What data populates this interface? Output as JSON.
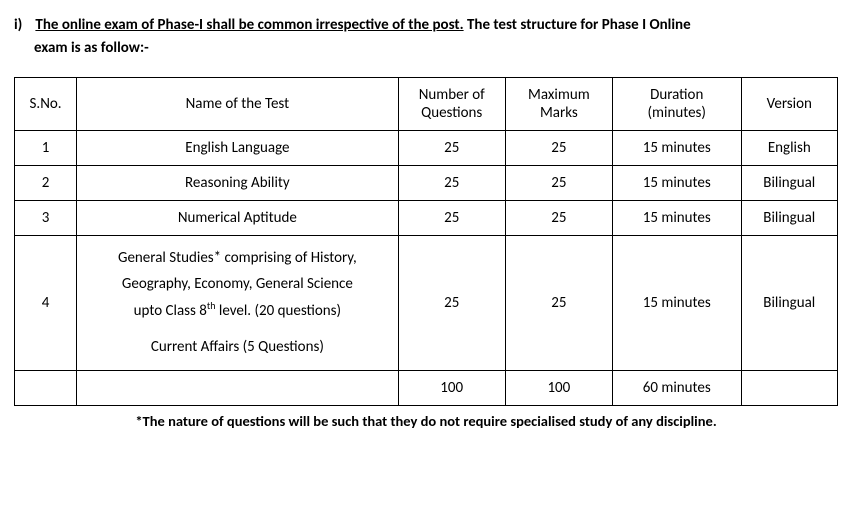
{
  "intro": {
    "item_label": "i)",
    "lead": "The online exam of Phase-I shall be common irrespective of the post.",
    "tail": " The test structure for Phase I Online",
    "line2": "exam is as follow:-"
  },
  "table": {
    "headers": {
      "sno": "S.No.",
      "name": "Name of the Test",
      "questions_l1": "Number of",
      "questions_l2": "Questions",
      "marks_l1": "Maximum",
      "marks_l2": "Marks",
      "duration_l1": "Duration",
      "duration_l2": "(minutes)",
      "version": "Version"
    },
    "row1": {
      "sno": "1",
      "name": "English Language",
      "q": "25",
      "m": "25",
      "d": "15 minutes",
      "v": "English"
    },
    "row2": {
      "sno": "2",
      "name": "Reasoning Ability",
      "q": "25",
      "m": "25",
      "d": "15 minutes",
      "v": "Bilingual"
    },
    "row3": {
      "sno": "3",
      "name": "Numerical Aptitude",
      "q": "25",
      "m": "25",
      "d": "15 minutes",
      "v": "Bilingual"
    },
    "row4": {
      "sno": "4",
      "name_l1": "General Studies* comprising of History,",
      "name_l2": "Geography, Economy, General Science",
      "name_l3a": "upto Class 8",
      "name_l3sup": "th",
      "name_l3b": " level. (20 questions)",
      "name_l4": "Current Affairs (5 Questions)",
      "q": "25",
      "m": "25",
      "d": "15 minutes",
      "v": "Bilingual"
    },
    "total": {
      "q": "100",
      "m": "100",
      "d": "60 minutes"
    }
  },
  "footnote": "*The nature of questions will be such that they do not require specialised study of any discipline."
}
